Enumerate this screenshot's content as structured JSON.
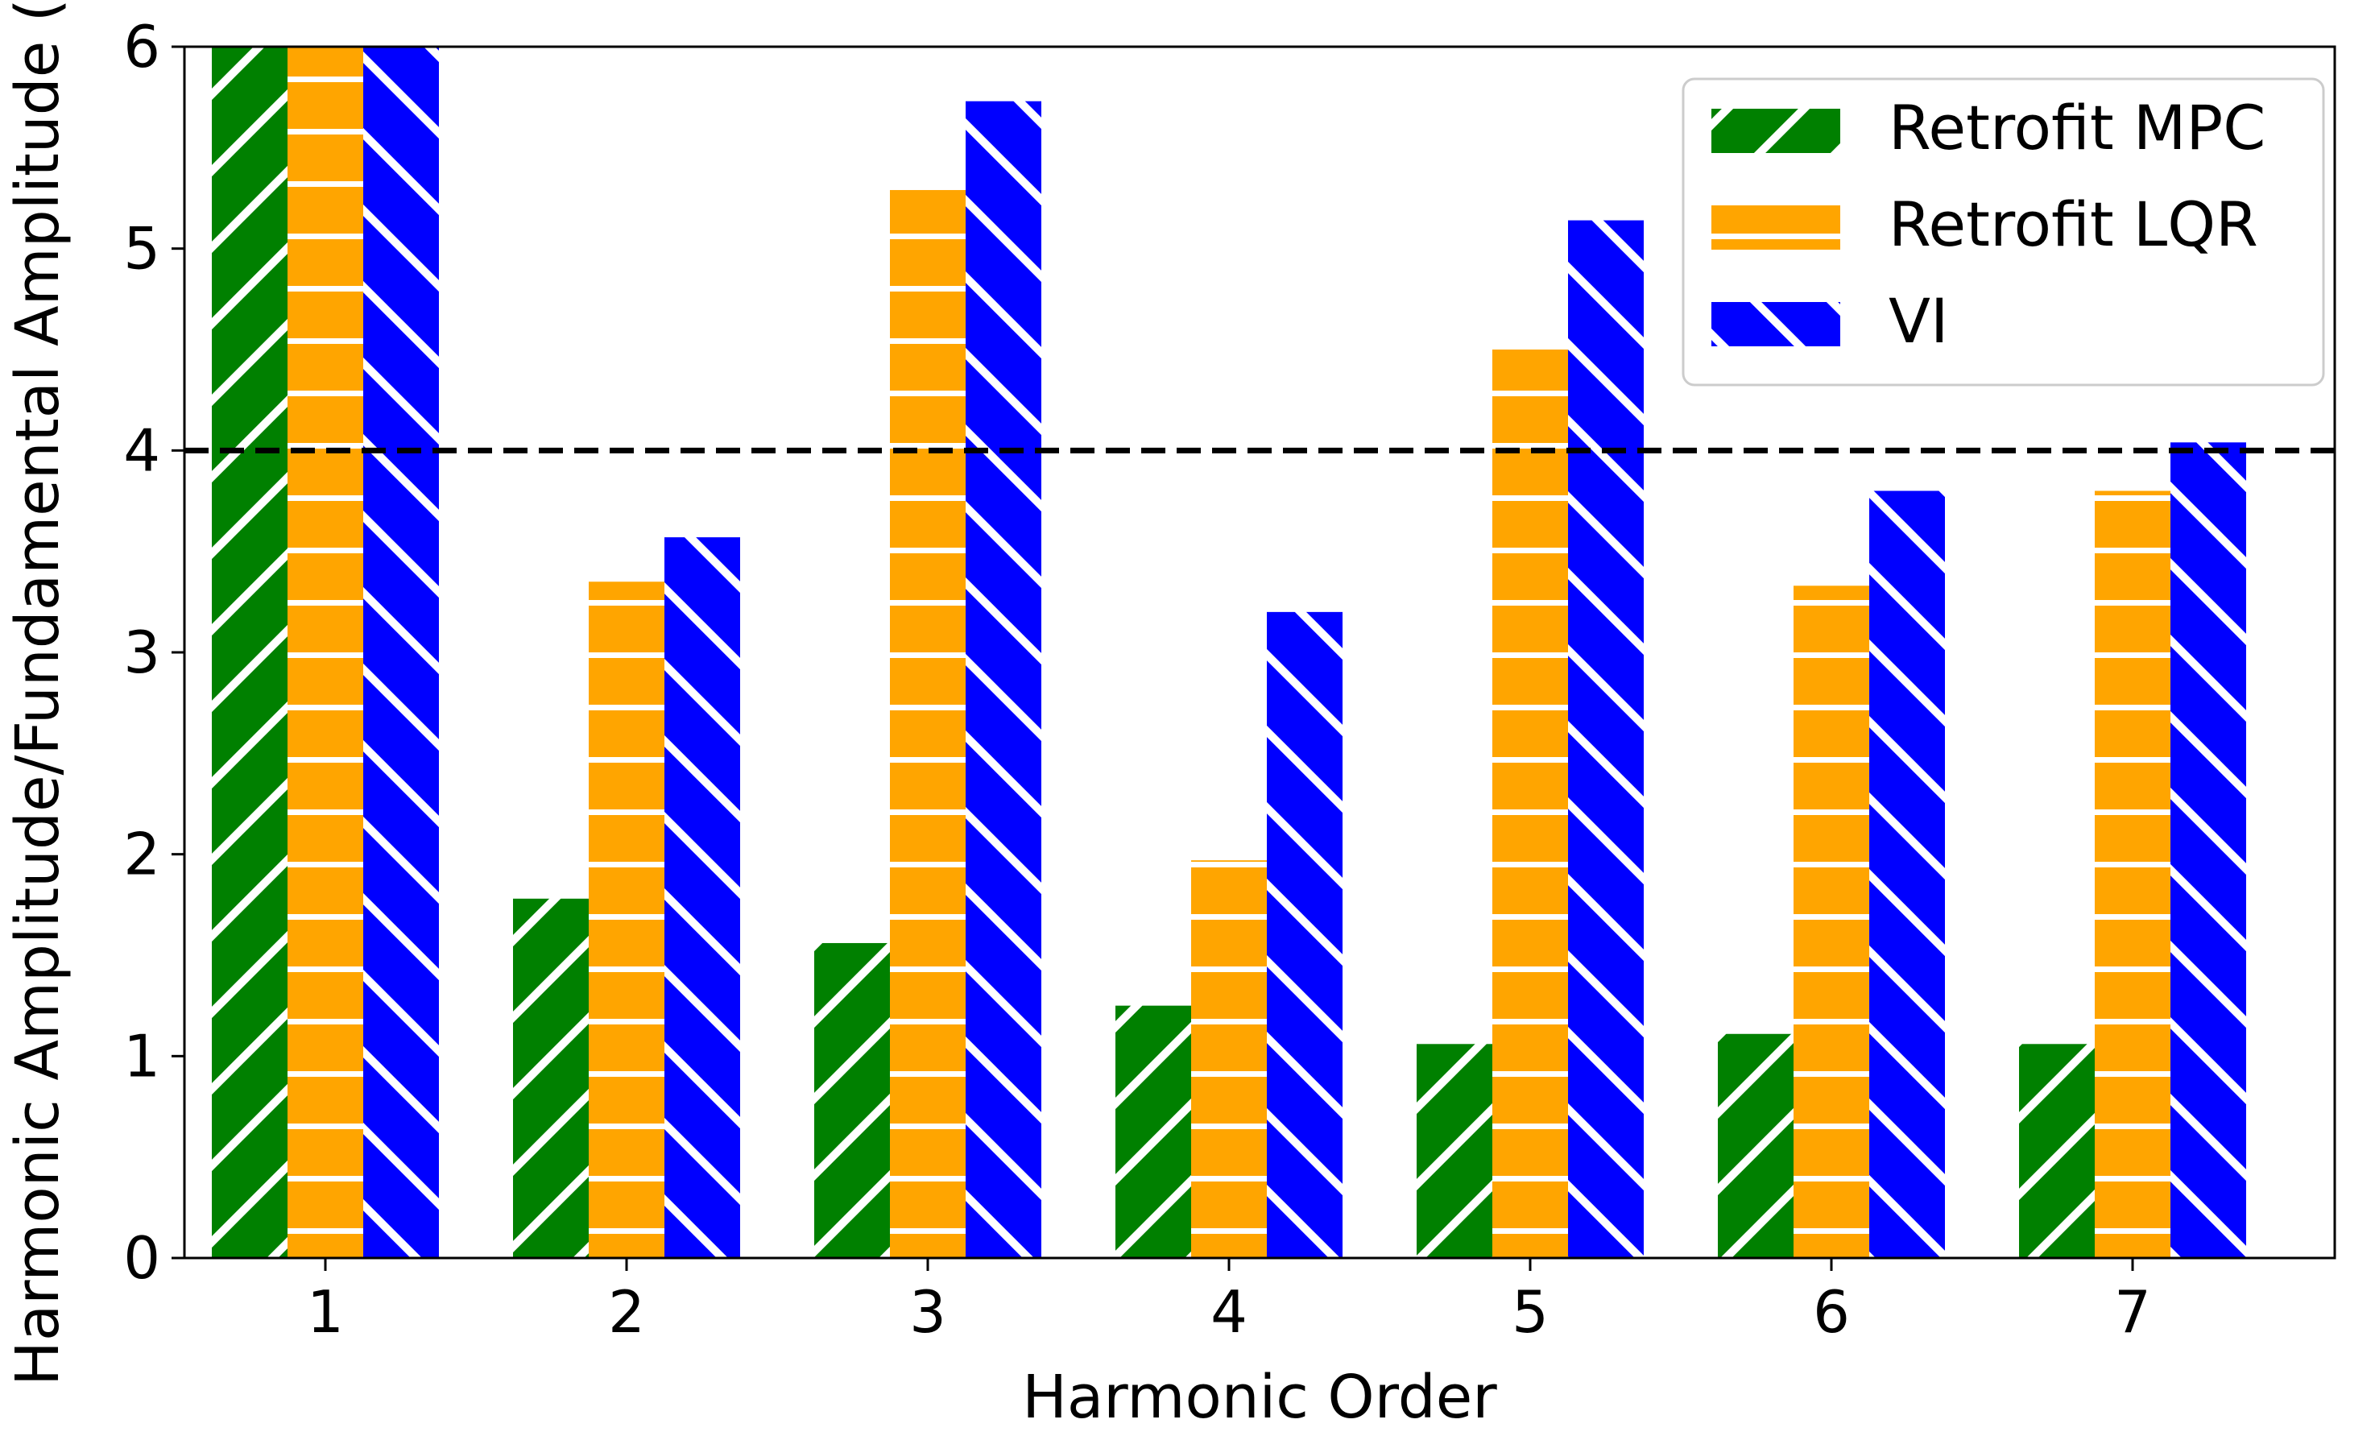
{
  "chart_data": {
    "type": "bar",
    "title": "",
    "xlabel": "Harmonic Order",
    "ylabel": "Harmonic Amplitude/Fundamental Amplitude (%)",
    "categories": [
      "1",
      "2",
      "3",
      "4",
      "5",
      "6",
      "7"
    ],
    "ylim": [
      0,
      6
    ],
    "yticks": [
      "0",
      "1",
      "2",
      "3",
      "4",
      "5",
      "6"
    ],
    "grid": false,
    "legend_position": "top-right",
    "series": [
      {
        "name": "Retrofit MPC",
        "color": "#008000",
        "hatch": "forward-diagonal",
        "values": [
          6.0,
          1.78,
          1.56,
          1.25,
          1.06,
          1.11,
          1.06
        ]
      },
      {
        "name": "Retrofit LQR",
        "color": "#FFA500",
        "hatch": "horizontal",
        "values": [
          6.0,
          3.35,
          5.29,
          1.97,
          4.5,
          3.33,
          3.8
        ]
      },
      {
        "name": "VI",
        "color": "#0000FF",
        "hatch": "back-diagonal",
        "values": [
          6.0,
          3.57,
          5.73,
          3.2,
          5.14,
          3.8,
          4.04
        ]
      }
    ],
    "reference_line": {
      "value": 4,
      "style": "dashed",
      "color": "#000000"
    }
  }
}
